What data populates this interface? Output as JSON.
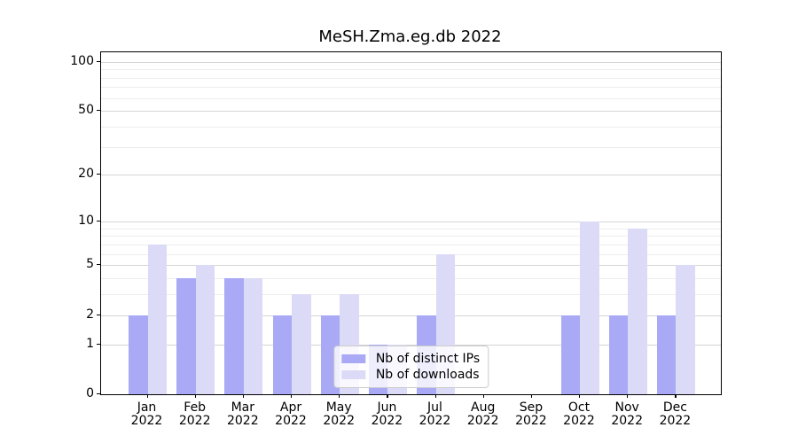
{
  "title": "MeSH.Zma.eg.db 2022",
  "chart_data": {
    "type": "bar",
    "title": "MeSH.Zma.eg.db 2022",
    "xlabel": "",
    "ylabel": "",
    "categories": [
      "Jan",
      "Feb",
      "Mar",
      "Apr",
      "May",
      "Jun",
      "Jul",
      "Aug",
      "Sep",
      "Oct",
      "Nov",
      "Dec"
    ],
    "category_sublabels": [
      "2022",
      "2022",
      "2022",
      "2022",
      "2022",
      "2022",
      "2022",
      "2022",
      "2022",
      "2022",
      "2022",
      "2022"
    ],
    "series": [
      {
        "name": "Nb of distinct IPs",
        "color": "#a9a9f5",
        "values": [
          2,
          4,
          4,
          2,
          2,
          1,
          2,
          0,
          0,
          2,
          2,
          2
        ]
      },
      {
        "name": "Nb of downloads",
        "color": "#dbdbf7",
        "values": [
          7,
          5,
          4,
          3,
          3,
          1,
          6,
          0,
          0,
          10,
          9,
          5
        ]
      }
    ],
    "yscale": "log1p",
    "ylim": [
      0,
      114
    ],
    "y_major_ticks": [
      100,
      50,
      20,
      10,
      5,
      2,
      1,
      0
    ],
    "y_minor_gridlines": [
      3,
      4,
      6,
      7,
      8,
      9,
      30,
      40,
      60,
      70,
      80,
      90
    ],
    "grid": true,
    "legend_position": "lower center"
  },
  "colors": {
    "series_distinct_ips": "#a9a9f5",
    "series_downloads": "#dbdbf7",
    "grid_major": "#d4d4d4",
    "grid_minor": "#ededed",
    "spine": "#000000",
    "background": "#ffffff"
  }
}
